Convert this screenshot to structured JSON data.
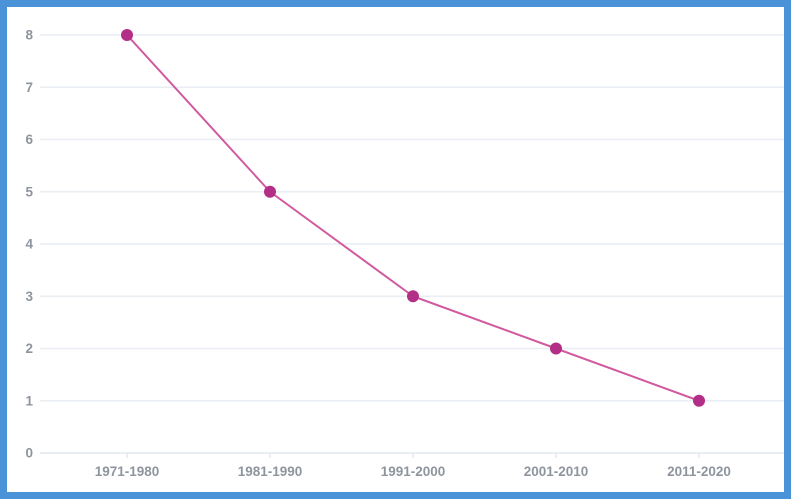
{
  "chart_data": {
    "type": "line",
    "title": "",
    "xlabel": "",
    "ylabel": "",
    "categories": [
      "1971-1980",
      "1981-1990",
      "1991-2000",
      "2001-2010",
      "2011-2020"
    ],
    "values": [
      8,
      5,
      3,
      2,
      1
    ],
    "ylim": [
      0,
      8
    ],
    "yticks": [
      0,
      1,
      2,
      3,
      4,
      5,
      6,
      7,
      8
    ],
    "grid": true,
    "legend": false,
    "colors": {
      "frame_border": "#4a93d9",
      "gridline": "#e9eef3",
      "axis_line": "#e2e8ee",
      "tick_label": "#8e959e",
      "line": "#d15a9f",
      "point": "#b32e87"
    }
  }
}
